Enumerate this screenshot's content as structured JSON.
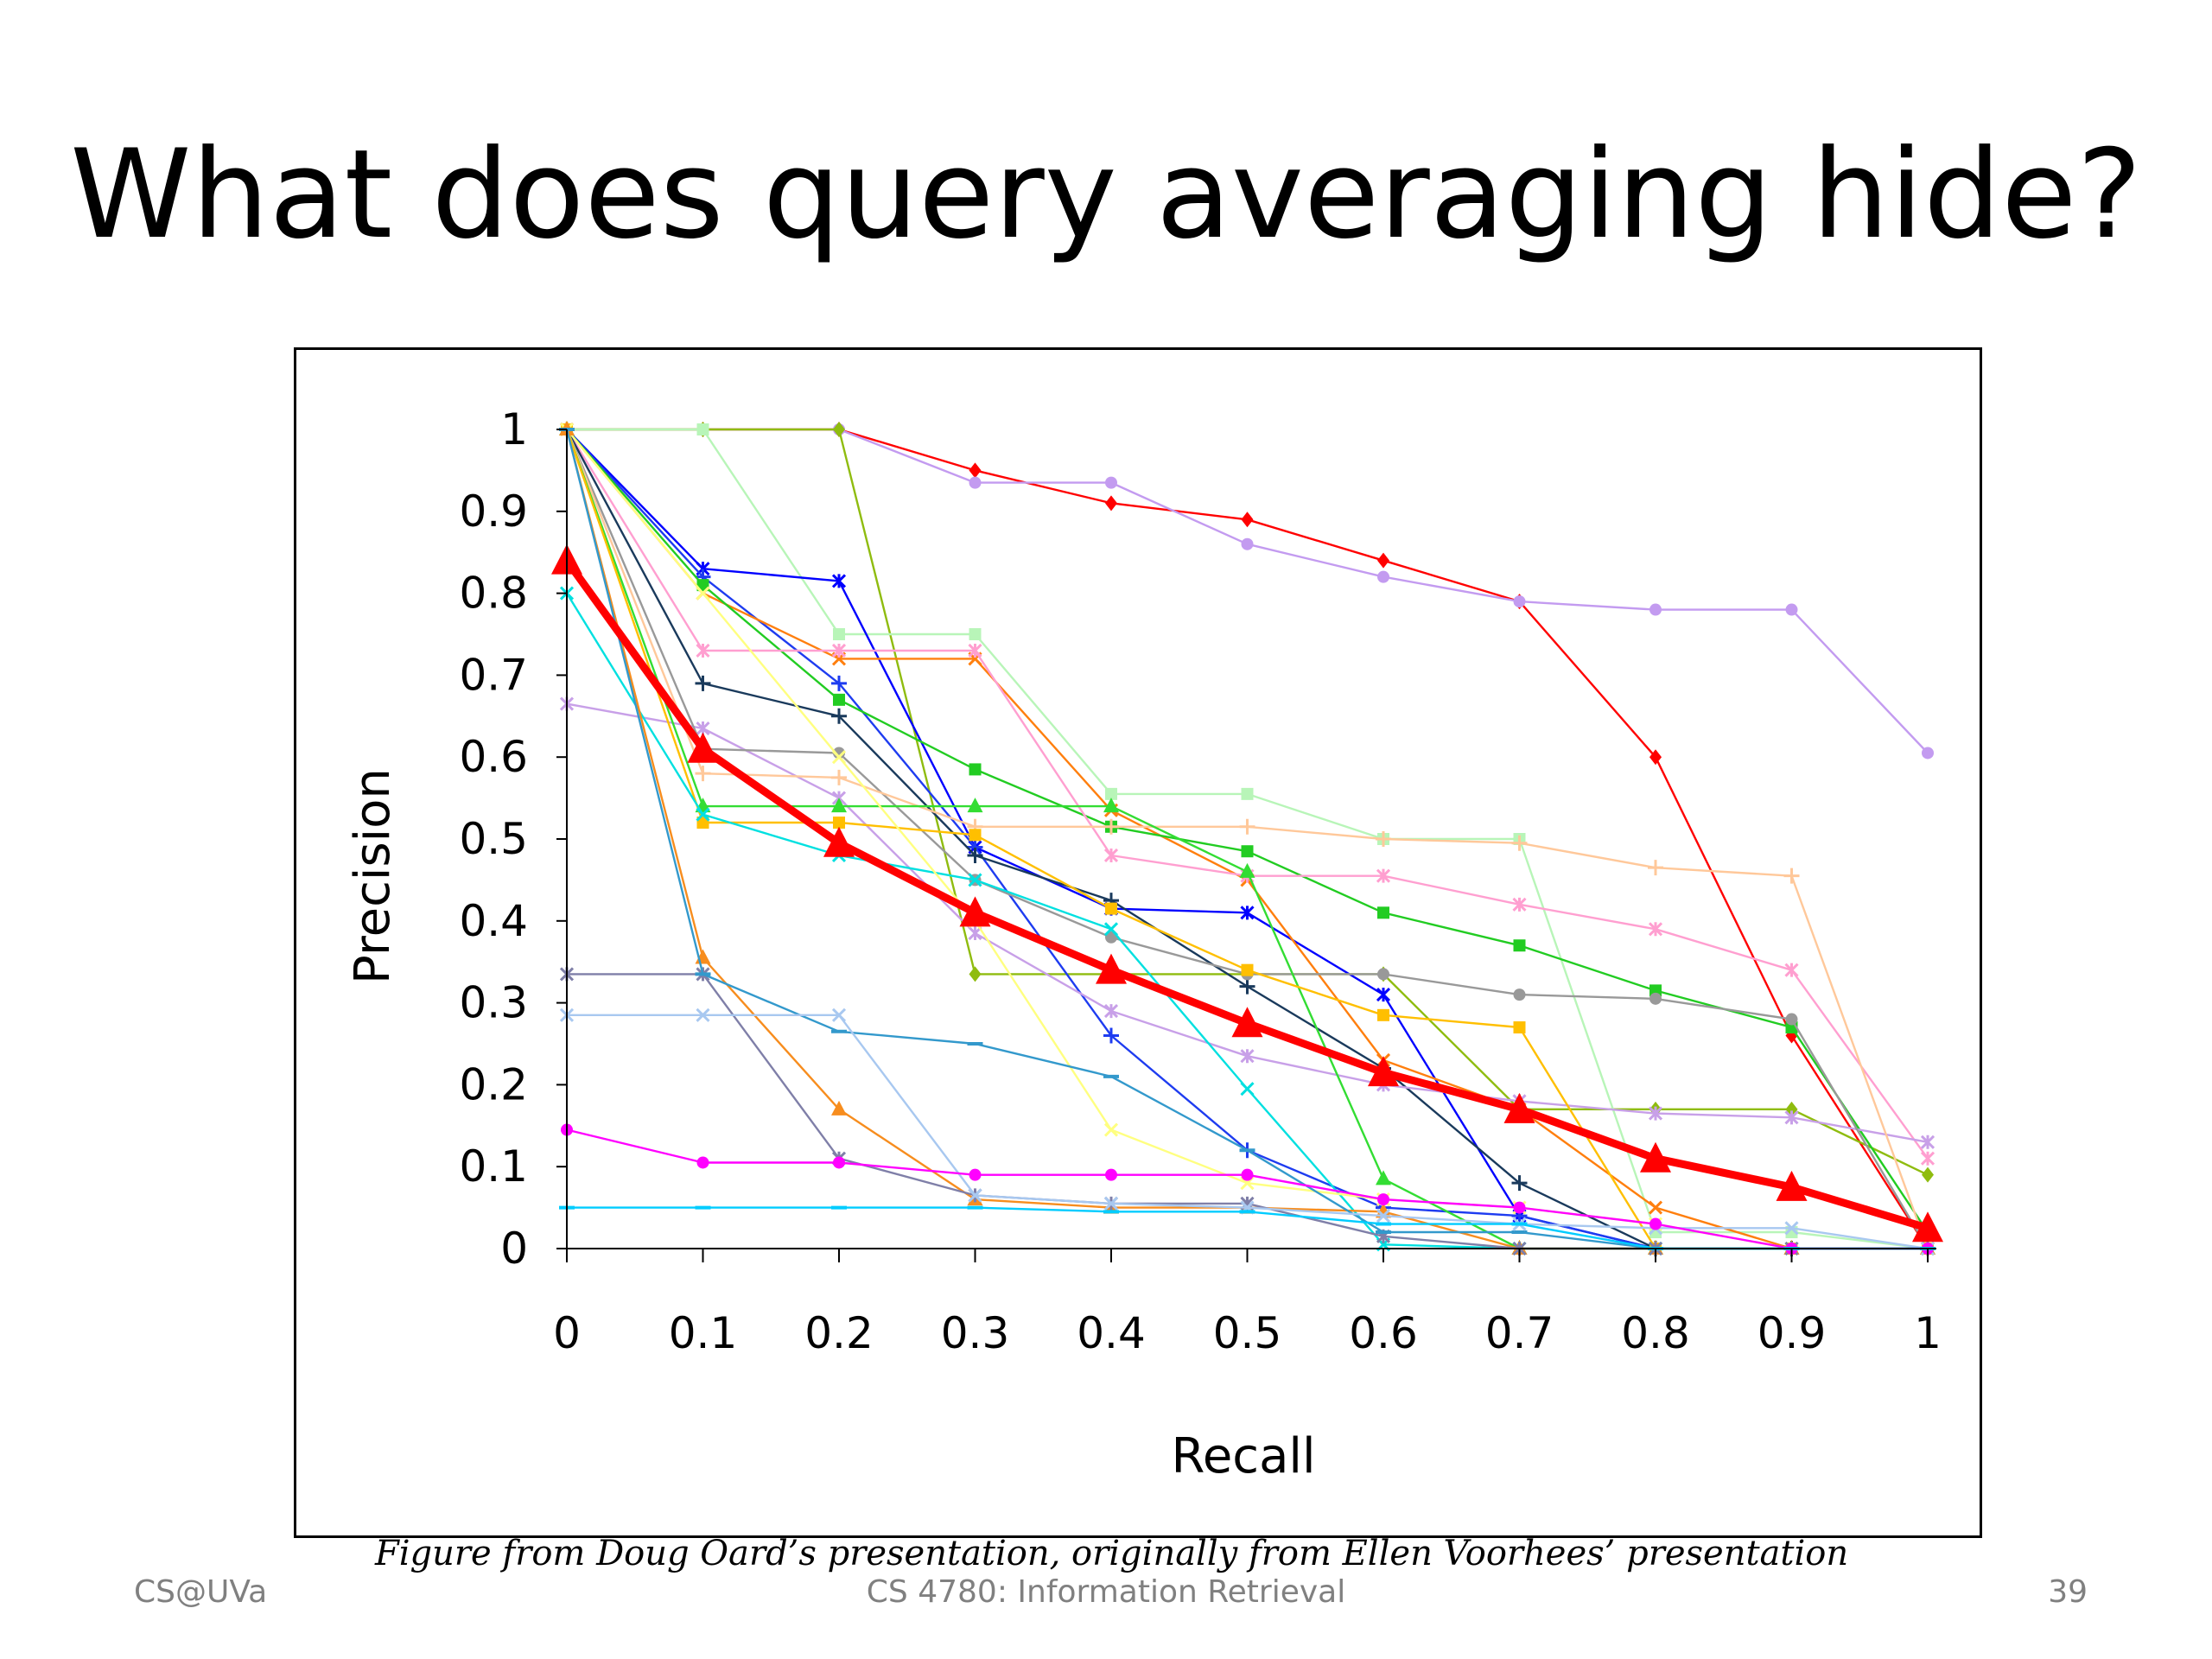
{
  "slide": {
    "title": "What does query averaging hide?",
    "caption": "Figure from Doug Oard’s presentation, originally from Ellen Voorhees’ presentation",
    "footer_left": "CS@UVa",
    "footer_center": "CS 4780: Information Retrieval",
    "page_number": "39"
  },
  "chart_data": {
    "type": "line",
    "title": "",
    "xlabel": "Recall",
    "ylabel": "Precision",
    "x": [
      0,
      0.1,
      0.2,
      0.3,
      0.4,
      0.5,
      0.6,
      0.7,
      0.8,
      0.9,
      1
    ],
    "xticks": [
      "0",
      "0.1",
      "0.2",
      "0.3",
      "0.4",
      "0.5",
      "0.6",
      "0.7",
      "0.8",
      "0.9",
      "1"
    ],
    "yticks": [
      "0",
      "0.1",
      "0.2",
      "0.3",
      "0.4",
      "0.5",
      "0.6",
      "0.7",
      "0.8",
      "0.9",
      "1"
    ],
    "xlim": [
      0,
      1
    ],
    "ylim": [
      0,
      1
    ],
    "grid": false,
    "legend": "none",
    "series": [
      {
        "color": "#ff0000",
        "marker": "diamond",
        "values": [
          1,
          1,
          1,
          0.95,
          0.91,
          0.89,
          0.84,
          0.79,
          0.6,
          0.26,
          0
        ]
      },
      {
        "color": "#c39bf0",
        "marker": "circle",
        "values": [
          1,
          1,
          1,
          0.935,
          0.935,
          0.86,
          0.82,
          0.79,
          0.78,
          0.78,
          0.605
        ]
      },
      {
        "color": "#8fbc0f",
        "marker": "diamond",
        "values": [
          1,
          1,
          1,
          0.335,
          0.335,
          0.335,
          0.335,
          0.17,
          0.17,
          0.17,
          0.09
        ]
      },
      {
        "color": "#b8f5b8",
        "marker": "square",
        "values": [
          1,
          1,
          0.75,
          0.75,
          0.555,
          0.555,
          0.5,
          0.5,
          0.02,
          0.02,
          0
        ]
      },
      {
        "color": "#0000ff",
        "marker": "star",
        "values": [
          1,
          0.83,
          0.815,
          0.49,
          0.415,
          0.41,
          0.31,
          0.04,
          0,
          0,
          0
        ]
      },
      {
        "color": "#1e3cf0",
        "marker": "plus",
        "values": [
          1,
          0.82,
          0.69,
          0.49,
          0.26,
          0.12,
          0.05,
          0.04,
          0,
          0,
          0
        ]
      },
      {
        "color": "#ff7f0e",
        "marker": "x",
        "values": [
          1,
          0.8,
          0.72,
          0.72,
          0.535,
          0.45,
          0.23,
          0.17,
          0.05,
          0,
          0
        ]
      },
      {
        "color": "#22cc22",
        "marker": "square",
        "values": [
          1,
          0.81,
          0.67,
          0.585,
          0.515,
          0.485,
          0.41,
          0.37,
          0.315,
          0.27,
          0.02
        ]
      },
      {
        "color": "#ff9fd0",
        "marker": "star",
        "values": [
          1,
          0.73,
          0.73,
          0.73,
          0.48,
          0.455,
          0.455,
          0.42,
          0.39,
          0.34,
          0.11
        ]
      },
      {
        "color": "#1a3a5c",
        "marker": "plus",
        "values": [
          1,
          0.69,
          0.65,
          0.48,
          0.425,
          0.32,
          0.22,
          0.08,
          0,
          0,
          0
        ]
      },
      {
        "color": "#c8a0e8",
        "marker": "star",
        "values": [
          0.665,
          0.635,
          0.55,
          0.385,
          0.29,
          0.235,
          0.2,
          0.18,
          0.165,
          0.16,
          0.13
        ]
      },
      {
        "color": "#999999",
        "marker": "circle",
        "values": [
          1,
          0.61,
          0.605,
          0.45,
          0.38,
          0.335,
          0.335,
          0.31,
          0.305,
          0.28,
          0
        ]
      },
      {
        "color": "#ffc89a",
        "marker": "plus",
        "values": [
          1,
          0.58,
          0.575,
          0.515,
          0.515,
          0.515,
          0.5,
          0.495,
          0.465,
          0.455,
          0
        ]
      },
      {
        "color": "#33dd33",
        "marker": "triangle",
        "values": [
          1,
          0.54,
          0.54,
          0.54,
          0.54,
          0.46,
          0.085,
          0,
          0,
          0,
          0
        ]
      },
      {
        "color": "#ffbf00",
        "marker": "square",
        "values": [
          1,
          0.52,
          0.52,
          0.505,
          0.415,
          0.34,
          0.285,
          0.27,
          0,
          0,
          0
        ]
      },
      {
        "color": "#00e0e0",
        "marker": "x",
        "values": [
          0.8,
          0.53,
          0.48,
          0.45,
          0.39,
          0.195,
          0.005,
          0,
          0,
          0,
          0
        ]
      },
      {
        "color": "#ffff80",
        "marker": "x",
        "values": [
          1,
          0.8,
          0.6,
          0.4,
          0.145,
          0.08,
          0.06,
          0.05,
          0.03,
          0,
          0
        ]
      },
      {
        "color": "#f78d1e",
        "marker": "triangle",
        "values": [
          1,
          0.355,
          0.17,
          0.06,
          0.05,
          0.05,
          0.045,
          0,
          0,
          0,
          0
        ]
      },
      {
        "color": "#7f7fa8",
        "marker": "star",
        "values": [
          0.335,
          0.335,
          0.11,
          0.065,
          0.055,
          0.055,
          0.015,
          0,
          0,
          0,
          0
        ]
      },
      {
        "color": "#3399cc",
        "marker": "dash",
        "values": [
          1,
          0.335,
          0.265,
          0.25,
          0.21,
          0.12,
          0.02,
          0.02,
          0,
          0,
          0
        ]
      },
      {
        "color": "#a8c8f0",
        "marker": "x",
        "values": [
          0.285,
          0.285,
          0.285,
          0.065,
          0.055,
          0.05,
          0.04,
          0.03,
          0.025,
          0.025,
          0
        ]
      },
      {
        "color": "#ff00ff",
        "marker": "circle",
        "values": [
          0.145,
          0.105,
          0.105,
          0.09,
          0.09,
          0.09,
          0.06,
          0.05,
          0.03,
          0,
          0
        ]
      },
      {
        "color": "#00ccff",
        "marker": "dash",
        "values": [
          0.05,
          0.05,
          0.05,
          0.05,
          0.045,
          0.045,
          0.03,
          0.03,
          0,
          0,
          0
        ]
      },
      {
        "color": "#ff0000",
        "marker": "triangle",
        "bold": true,
        "values": [
          0.84,
          0.61,
          0.495,
          0.41,
          0.34,
          0.275,
          0.215,
          0.17,
          0.11,
          0.075,
          0.025
        ]
      }
    ]
  }
}
